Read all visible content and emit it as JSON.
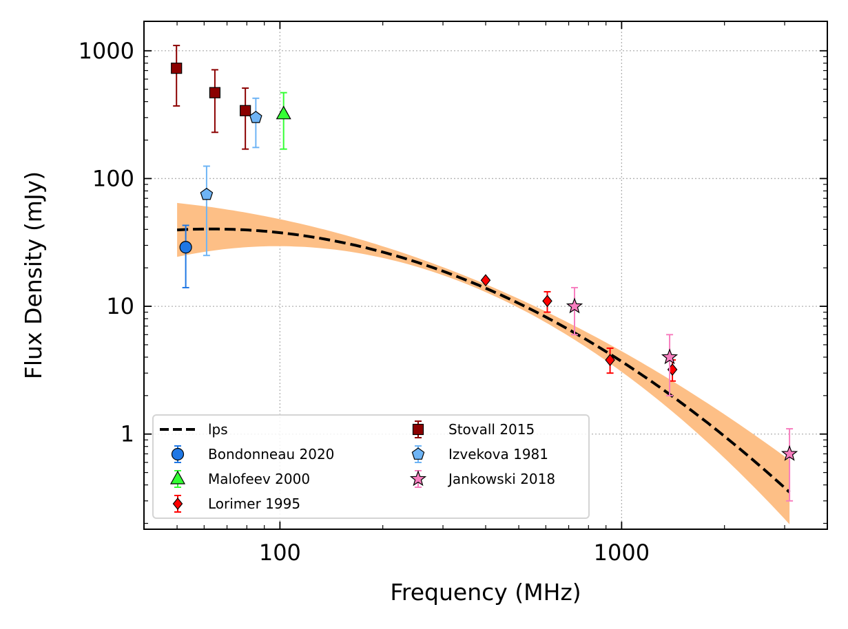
{
  "chart_data": {
    "type": "scatter",
    "title": "",
    "xlabel": "Frequency (MHz)",
    "ylabel": "Flux Density (mJy)",
    "xscale": "log",
    "yscale": "log",
    "xlim": [
      40,
      4000
    ],
    "ylim": [
      0.18,
      1700
    ],
    "xticks": [
      {
        "value": 100,
        "label": "100"
      },
      {
        "value": 1000,
        "label": "1000"
      }
    ],
    "yticks": [
      {
        "value": 1,
        "label": "1"
      },
      {
        "value": 10,
        "label": "10"
      },
      {
        "value": 100,
        "label": "100"
      },
      {
        "value": 1000,
        "label": "1000"
      }
    ],
    "grid": true,
    "legend_position": "lower-left",
    "model": {
      "name": "lps",
      "color": "#000000",
      "band_color": "#fdbf86",
      "x_range": [
        50,
        3100
      ],
      "log_peak_y": 1.605,
      "peak_log_x": 1.8,
      "curvature": -0.72
    },
    "series": [
      {
        "name": "Bondonneau 2020",
        "marker": "circle",
        "color": "#1f77e4",
        "ecolor": "#1f77e4",
        "points": [
          {
            "x": 53,
            "y": 29,
            "ylow": 14,
            "yhigh": 43
          }
        ]
      },
      {
        "name": "Malofeev 2000",
        "marker": "triangle",
        "color": "#33ff33",
        "ecolor": "#33ff33",
        "points": [
          {
            "x": 102.5,
            "y": 320,
            "ylow": 170,
            "yhigh": 470
          }
        ]
      },
      {
        "name": "Lorimer 1995",
        "marker": "diamond",
        "color": "#ff0000",
        "ecolor": "#ff0000",
        "points": [
          {
            "x": 400,
            "y": 16,
            "ylow": 16,
            "yhigh": 16
          },
          {
            "x": 606,
            "y": 11,
            "ylow": 9,
            "yhigh": 13
          },
          {
            "x": 925,
            "y": 3.8,
            "ylow": 3,
            "yhigh": 4.7
          },
          {
            "x": 1408,
            "y": 3.2,
            "ylow": 2.6,
            "yhigh": 3.8
          }
        ]
      },
      {
        "name": "Stovall 2015",
        "marker": "square",
        "color": "#8b0000",
        "ecolor": "#8b0000",
        "points": [
          {
            "x": 49.8,
            "y": 730,
            "ylow": 370,
            "yhigh": 1100
          },
          {
            "x": 64.5,
            "y": 470,
            "ylow": 230,
            "yhigh": 710
          },
          {
            "x": 79.2,
            "y": 340,
            "ylow": 170,
            "yhigh": 510
          }
        ]
      },
      {
        "name": "Izvekova 1981",
        "marker": "pentagon",
        "color": "#6eb4f5",
        "ecolor": "#6eb4f5",
        "points": [
          {
            "x": 61,
            "y": 75,
            "ylow": 25,
            "yhigh": 125
          },
          {
            "x": 85,
            "y": 300,
            "ylow": 175,
            "yhigh": 425
          }
        ]
      },
      {
        "name": "Jankowski 2018",
        "marker": "star",
        "color": "#f77ebf",
        "ecolor": "#f77ebf",
        "points": [
          {
            "x": 728,
            "y": 10,
            "ylow": 6,
            "yhigh": 14
          },
          {
            "x": 1382,
            "y": 4,
            "ylow": 2,
            "yhigh": 6
          },
          {
            "x": 3100,
            "y": 0.7,
            "ylow": 0.3,
            "yhigh": 1.1
          }
        ]
      }
    ]
  }
}
